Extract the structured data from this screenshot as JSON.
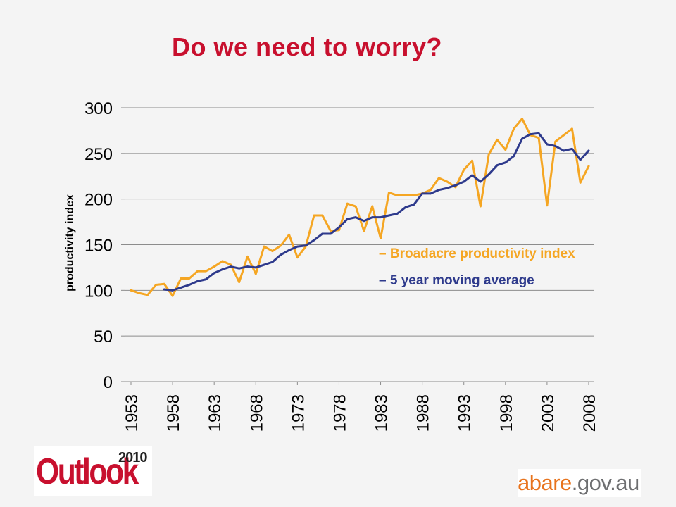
{
  "slide": {
    "title": "Do we need to worry?"
  },
  "logos": {
    "outlook_word": "Outlook",
    "outlook_year": "2010",
    "abare_main": "abare",
    "abare_domain": ".gov.au"
  },
  "chart_data": {
    "type": "line",
    "ylabel": "productivity index",
    "xlabel": "",
    "ylim": [
      0,
      300
    ],
    "yticks": [
      0,
      50,
      100,
      150,
      200,
      250,
      300
    ],
    "x_tick_labels": [
      "1953",
      "1958",
      "1963",
      "1968",
      "1973",
      "1978",
      "1983",
      "1988",
      "1993",
      "1998",
      "2003",
      "2008"
    ],
    "grid": "horizontal",
    "series": [
      {
        "name": "– Broadacre productivity index",
        "color": "#f5a623",
        "x": [
          1953,
          1954,
          1955,
          1956,
          1957,
          1958,
          1959,
          1960,
          1961,
          1962,
          1963,
          1964,
          1965,
          1966,
          1967,
          1968,
          1969,
          1970,
          1971,
          1972,
          1973,
          1974,
          1975,
          1976,
          1977,
          1978,
          1979,
          1980,
          1981,
          1982,
          1983,
          1984,
          1985,
          1986,
          1987,
          1988,
          1989,
          1990,
          1991,
          1992,
          1993,
          1994,
          1995,
          1996,
          1997,
          1998,
          1999,
          2000,
          2001,
          2002,
          2003,
          2004,
          2005,
          2006,
          2007,
          2008
        ],
        "values": [
          100,
          97,
          95,
          106,
          107,
          94,
          113,
          113,
          121,
          121,
          126,
          132,
          128,
          109,
          137,
          118,
          148,
          143,
          149,
          161,
          136,
          148,
          182,
          182,
          165,
          166,
          195,
          192,
          165,
          192,
          157,
          207,
          204,
          204,
          204,
          206,
          210,
          223,
          219,
          213,
          232,
          242,
          192,
          249,
          265,
          254,
          277,
          288,
          270,
          267,
          193,
          263,
          270,
          277,
          218,
          236
        ]
      },
      {
        "name": "– 5 year moving average",
        "color": "#2e3a8c",
        "x": [
          1957,
          1958,
          1959,
          1960,
          1961,
          1962,
          1963,
          1964,
          1965,
          1966,
          1967,
          1968,
          1969,
          1970,
          1971,
          1972,
          1973,
          1974,
          1975,
          1976,
          1977,
          1978,
          1979,
          1980,
          1981,
          1982,
          1983,
          1984,
          1985,
          1986,
          1987,
          1988,
          1989,
          1990,
          1991,
          1992,
          1993,
          1994,
          1995,
          1996,
          1997,
          1998,
          1999,
          2000,
          2001,
          2002,
          2003,
          2004,
          2005,
          2006,
          2007,
          2008
        ],
        "values": [
          101,
          100,
          103,
          106,
          110,
          112,
          119,
          123,
          126,
          124,
          126,
          125,
          128,
          131,
          139,
          144,
          148,
          149,
          155,
          162,
          162,
          169,
          178,
          180,
          176,
          180,
          180,
          182,
          184,
          191,
          194,
          206,
          206,
          210,
          212,
          215,
          219,
          226,
          219,
          227,
          237,
          240,
          247,
          266,
          271,
          272,
          260,
          258,
          253,
          255,
          243,
          253
        ]
      }
    ]
  }
}
